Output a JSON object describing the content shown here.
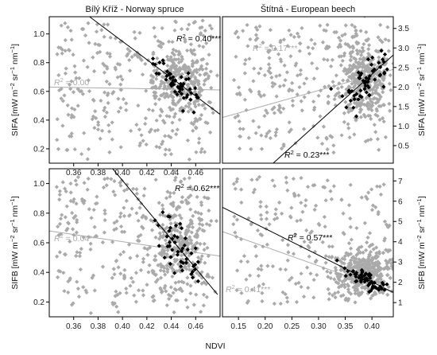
{
  "figure": {
    "xlabel": "NDVI",
    "colors": {
      "all": "#aaaaaa",
      "selected": "#000000",
      "fit_all": "#aaaaaa",
      "fit_selected": "#000000"
    }
  },
  "chart_data": [
    {
      "id": "tl",
      "type": "scatter",
      "title": "Bílý Kříž - Norway spruce",
      "ylabel_main": "SIFA",
      "ylabel_unit": "[mW m",
      "xlim": [
        0.34,
        0.48
      ],
      "ylim": [
        0.1,
        1.12
      ],
      "xticks": [
        "0.36",
        "0.38",
        "0.40",
        "0.42",
        "0.44",
        "0.46"
      ],
      "xtick_values": [
        0.36,
        0.38,
        0.4,
        0.42,
        0.44,
        0.46
      ],
      "yticks": [
        "0.2",
        "0.4",
        "0.6",
        "0.8",
        "1.0"
      ],
      "ytick_values": [
        0.2,
        0.4,
        0.6,
        0.8,
        1.0
      ],
      "yaxis_side": "left",
      "fits": {
        "all": {
          "x": [
            0.34,
            0.48
          ],
          "y": [
            0.63,
            0.61
          ],
          "label": "R² = 0.00"
        },
        "selected": {
          "x": [
            0.373,
            0.48
          ],
          "y": [
            1.12,
            0.44
          ],
          "label": "R² = 0.40***"
        }
      },
      "clusters": {
        "all": {
          "n": 560,
          "cx": [
            0.346,
            0.474
          ],
          "cy": [
            0.12,
            1.1
          ],
          "dense": {
            "xc": 0.445,
            "xs": 0.012,
            "yc": 0.66,
            "ys": 0.12,
            "n": 260
          }
        },
        "selected": {
          "n": 52,
          "xc": 0.445,
          "xs": 0.01,
          "yc": 0.65,
          "ys": 0.1,
          "x_range": [
            0.425,
            0.462
          ]
        }
      }
    },
    {
      "id": "tr",
      "type": "scatter",
      "title": "Štítná - European beech",
      "ylabel_main": "SIFA",
      "ylabel_unit": "[mW m",
      "xlim": [
        0.12,
        0.44
      ],
      "ylim": [
        0.05,
        3.8
      ],
      "xticks": [],
      "xtick_values": [],
      "yticks": [
        "0.5",
        "1.0",
        "1.5",
        "2.0",
        "2.5",
        "3.0",
        "3.5"
      ],
      "ytick_values": [
        0.5,
        1.0,
        1.5,
        2.0,
        2.5,
        3.0,
        3.5
      ],
      "yaxis_side": "right",
      "fits": {
        "all": {
          "x": [
            0.12,
            0.44
          ],
          "y": [
            1.22,
            2.45
          ],
          "label": "R² = 0.17***"
        },
        "selected": {
          "x": [
            0.215,
            0.44
          ],
          "y": [
            0.05,
            2.82
          ],
          "label": "R² = 0.23***"
        }
      },
      "clusters": {
        "all": {
          "n": 600,
          "cx": [
            0.14,
            0.435
          ],
          "cy": [
            0.3,
            3.6
          ],
          "dense": {
            "xc": 0.385,
            "xs": 0.025,
            "yc": 2.2,
            "ys": 0.55,
            "n": 330
          }
        },
        "selected": {
          "n": 55,
          "xc": 0.385,
          "xs": 0.022,
          "yc": 2.05,
          "ys": 0.45,
          "x_range": [
            0.3,
            0.43
          ]
        }
      }
    },
    {
      "id": "bl",
      "type": "scatter",
      "title": "",
      "ylabel_main": "SIFB",
      "ylabel_unit": "[mW m",
      "xlim": [
        0.34,
        0.48
      ],
      "ylim": [
        0.1,
        1.1
      ],
      "xticks": [
        "0.36",
        "0.38",
        "0.40",
        "0.42",
        "0.44",
        "0.46"
      ],
      "xtick_values": [
        0.36,
        0.38,
        0.4,
        0.42,
        0.44,
        0.46
      ],
      "yticks": [
        "0.2",
        "0.4",
        "0.6",
        "0.8",
        "1.0"
      ],
      "ytick_values": [
        0.2,
        0.4,
        0.6,
        0.8,
        1.0
      ],
      "yaxis_side": "left",
      "fits": {
        "all": {
          "x": [
            0.34,
            0.48
          ],
          "y": [
            0.68,
            0.51
          ],
          "label": "R² = 0.04**"
        },
        "selected": {
          "x": [
            0.392,
            0.478
          ],
          "y": [
            1.1,
            0.25
          ],
          "label": "R² = 0.62***"
        }
      },
      "clusters": {
        "all": {
          "n": 560,
          "cx": [
            0.346,
            0.474
          ],
          "cy": [
            0.12,
            1.05
          ],
          "dense": {
            "xc": 0.445,
            "xs": 0.012,
            "yc": 0.58,
            "ys": 0.15,
            "n": 260
          }
        },
        "selected": {
          "n": 48,
          "xc": 0.445,
          "xs": 0.01,
          "yc": 0.58,
          "ys": 0.14,
          "x_range": [
            0.425,
            0.462
          ]
        }
      }
    },
    {
      "id": "br",
      "type": "scatter",
      "title": "",
      "ylabel_main": "SIFB",
      "ylabel_unit": "[mW m",
      "xlim": [
        0.12,
        0.44
      ],
      "ylim": [
        0.3,
        7.6
      ],
      "xticks": [
        "0.15",
        "0.20",
        "0.25",
        "0.30",
        "0.35",
        "0.40"
      ],
      "xtick_values": [
        0.15,
        0.2,
        0.25,
        0.3,
        0.35,
        0.4
      ],
      "yticks": [
        "1",
        "2",
        "3",
        "4",
        "5",
        "6",
        "7"
      ],
      "ytick_values": [
        1,
        2,
        3,
        4,
        5,
        6,
        7
      ],
      "yaxis_side": "right",
      "fits": {
        "all": {
          "x": [
            0.12,
            0.44
          ],
          "y": [
            4.5,
            1.5
          ],
          "label": "R² = 0.41***"
        },
        "selected": {
          "x": [
            0.12,
            0.44
          ],
          "y": [
            5.7,
            1.5
          ],
          "label": "R² = 0.57***"
        }
      },
      "clusters": {
        "all": {
          "n": 600,
          "cx": [
            0.14,
            0.435
          ],
          "cy": [
            0.9,
            7.2
          ],
          "dense": {
            "xc": 0.385,
            "xs": 0.03,
            "yc": 2.4,
            "ys": 0.5,
            "n": 380
          }
        },
        "selected": {
          "n": 60,
          "xc": 0.39,
          "xs": 0.02,
          "yc": 2.35,
          "ys": 0.35,
          "x_range": [
            0.33,
            0.43
          ]
        }
      }
    }
  ]
}
